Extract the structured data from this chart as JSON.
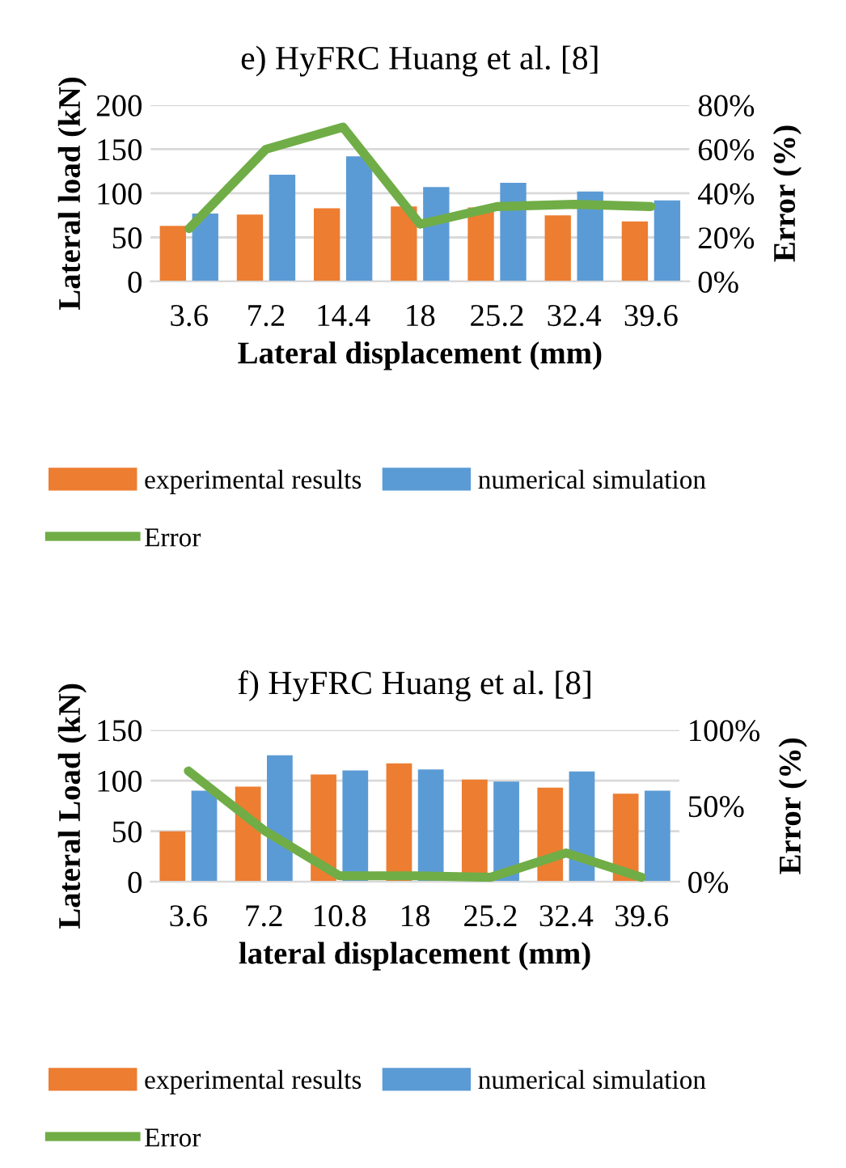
{
  "chart_data": [
    {
      "type": "bar",
      "title": "e) HyFRC Huang et al. [8]",
      "xlabel": "Lateral displacement (mm)",
      "ylabel": "Lateral load (kN)",
      "y2label": "Error (%)",
      "categories": [
        "3.6",
        "7.2",
        "14.4",
        "18",
        "25.2",
        "32.4",
        "39.6"
      ],
      "series": [
        {
          "name": "experimental results",
          "color": "#ed7d31",
          "values": [
            63,
            76,
            83,
            85,
            84,
            75,
            68
          ]
        },
        {
          "name": "numerical simulation",
          "color": "#5b9bd5",
          "values": [
            77,
            121,
            142,
            107,
            112,
            102,
            92
          ]
        },
        {
          "name": "Error",
          "type": "line",
          "axis": "y2",
          "color": "#70ad47",
          "values": [
            24,
            60,
            70,
            26,
            34,
            35,
            34
          ]
        }
      ],
      "ylim": [
        0,
        200
      ],
      "yticks": [
        0,
        50,
        100,
        150,
        200
      ],
      "y2lim": [
        0,
        80
      ],
      "y2ticks": [
        {
          "value": 0,
          "label": "0%"
        },
        {
          "value": 20,
          "label": "20%"
        },
        {
          "value": 40,
          "label": "40%"
        },
        {
          "value": 60,
          "label": "60%"
        },
        {
          "value": 80,
          "label": "80%"
        }
      ],
      "grid": "y",
      "legend": "bottom"
    },
    {
      "type": "bar",
      "title": "f) HyFRC Huang et al. [8]",
      "xlabel": "lateral displacement (mm)",
      "ylabel": "Lateral Load (kN)",
      "y2label": "Error (%)",
      "categories": [
        "3.6",
        "7.2",
        "10.8",
        "18",
        "25.2",
        "32.4",
        "39.6"
      ],
      "series": [
        {
          "name": "experimental results",
          "color": "#ed7d31",
          "values": [
            50,
            94,
            106,
            117,
            101,
            93,
            87
          ]
        },
        {
          "name": "numerical simulation",
          "color": "#5b9bd5",
          "values": [
            90,
            125,
            110,
            111,
            99,
            109,
            90
          ]
        },
        {
          "name": "Error",
          "type": "line",
          "axis": "y2",
          "color": "#70ad47",
          "values": [
            73,
            34,
            4,
            4,
            3,
            19,
            3
          ]
        }
      ],
      "ylim": [
        0,
        150
      ],
      "yticks": [
        0,
        50,
        100,
        150
      ],
      "y2lim": [
        0,
        100
      ],
      "y2ticks": [
        {
          "value": 0,
          "label": "0%"
        },
        {
          "value": 50,
          "label": "50%"
        },
        {
          "value": 100,
          "label": "100%"
        }
      ],
      "grid": "y",
      "legend": "bottom"
    }
  ]
}
